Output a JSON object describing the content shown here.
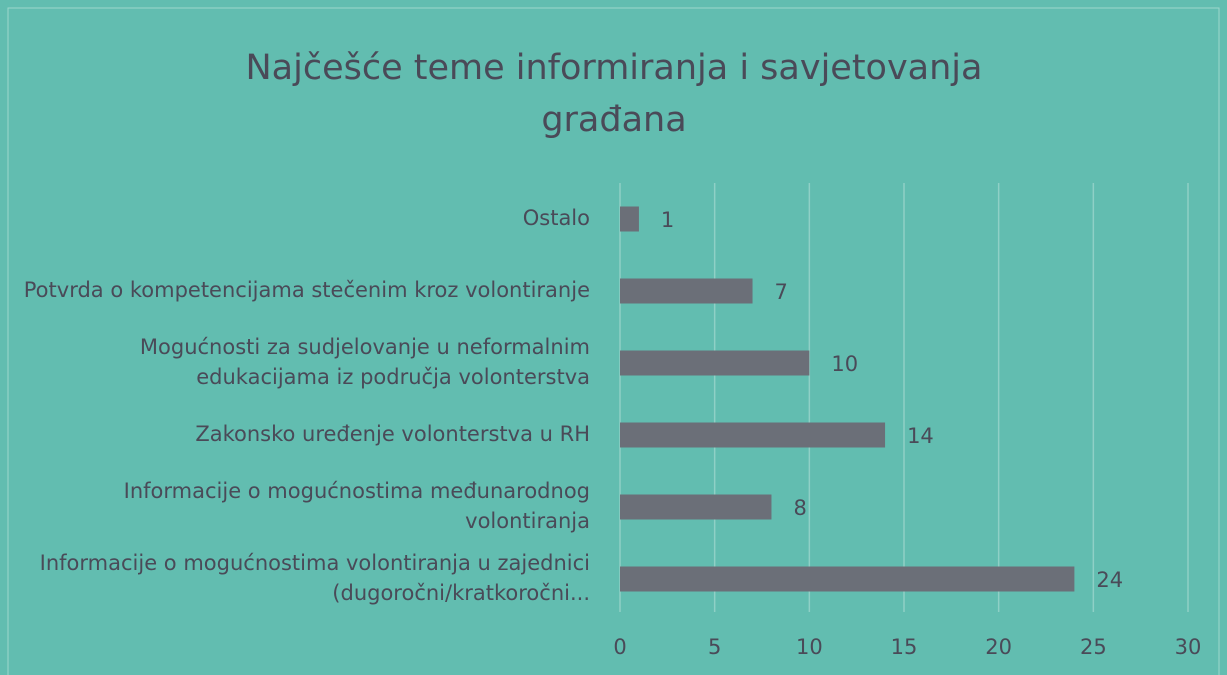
{
  "chart_data": {
    "type": "barh",
    "title": "Najčešće teme informiranja i savjetovanja građana",
    "categories": [
      "Ostalo",
      "Potvrda o kompetencijama stečenim kroz volontiranje",
      "Mogućnosti za sudjelovanje u neformalnim edukacijama iz područja volonterstva",
      "Zakonsko uređenje volonterstva u RH",
      "Informacije o mogućnostima međunarodnog volontiranja",
      "Informacije o mogućnostima volontiranja u zajednici (dugoročni/kratkoročni..."
    ],
    "values": [
      1,
      7,
      10,
      14,
      8,
      24
    ],
    "color": "#6b6f78",
    "xlim": [
      0,
      30
    ],
    "xticks": [
      0,
      5,
      10,
      15,
      20,
      25,
      30
    ],
    "grid": true
  }
}
